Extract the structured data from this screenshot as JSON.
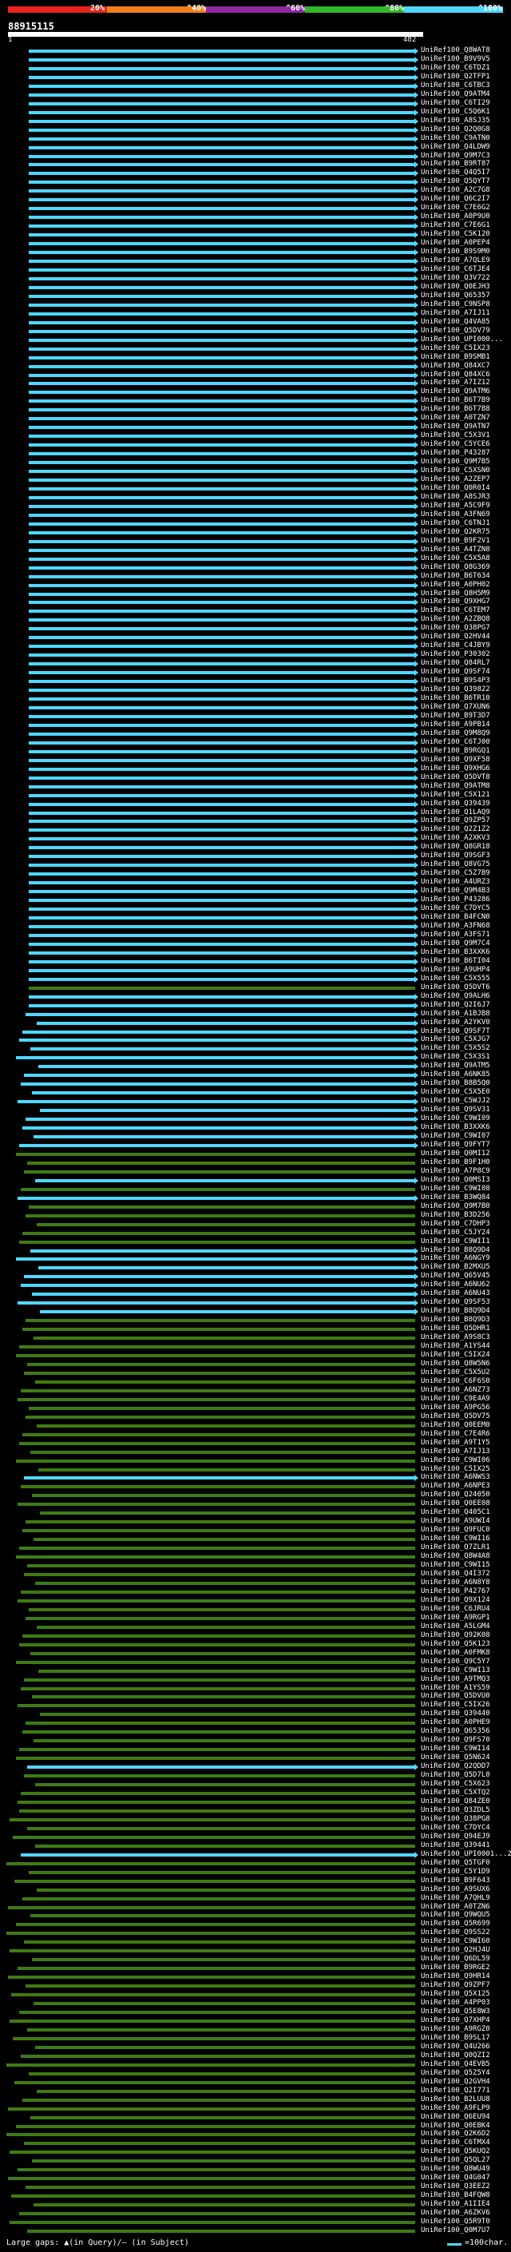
{
  "colors": {
    "red": "#e8241c",
    "orange": "#ef7f1a",
    "purple": "#8e2aa0",
    "green": "#34b52a",
    "cyan": "#4fd7ff",
    "olive": "#3f7b14",
    "white": "#ffffff",
    "background": "#000000"
  },
  "color_scale": {
    "labels": [
      "20%",
      "^40%",
      "^60%",
      "^80%",
      "^100%"
    ]
  },
  "query": {
    "id": "88915115",
    "start": "1",
    "end": "482"
  },
  "alignments": [
    {
      "id": "UniRef100_Q8WAT8",
      "identity": "high"
    },
    {
      "id": "UniRef100_B9V9V5",
      "identity": "high"
    },
    {
      "id": "UniRef100_C6TDZ1",
      "identity": "high"
    },
    {
      "id": "UniRef100_Q2TFP1",
      "identity": "high"
    },
    {
      "id": "UniRef100_C6TBC3",
      "identity": "high"
    },
    {
      "id": "UniRef100_Q9ATM4",
      "identity": "high"
    },
    {
      "id": "UniRef100_C6TI29",
      "identity": "high"
    },
    {
      "id": "UniRef100_C5Q6K1",
      "identity": "high"
    },
    {
      "id": "UniRef100_A8SJ35",
      "identity": "high"
    },
    {
      "id": "UniRef100_Q2Q0G8",
      "identity": "high"
    },
    {
      "id": "UniRef100_C9ATN0",
      "identity": "high"
    },
    {
      "id": "UniRef100_Q4LDW9",
      "identity": "high"
    },
    {
      "id": "UniRef100_Q9M7C3",
      "identity": "high"
    },
    {
      "id": "UniRef100_B9RT87",
      "identity": "high"
    },
    {
      "id": "UniRef100_Q4Q5I7",
      "identity": "high"
    },
    {
      "id": "UniRef100_Q5QYT7",
      "identity": "high"
    },
    {
      "id": "UniRef100_A2C7G8",
      "identity": "high"
    },
    {
      "id": "UniRef100_Q6C2I7",
      "identity": "high"
    },
    {
      "id": "UniRef100_C7E6G2",
      "identity": "high"
    },
    {
      "id": "UniRef100_A0P9U0",
      "identity": "high"
    },
    {
      "id": "UniRef100_C7E6G1",
      "identity": "high"
    },
    {
      "id": "UniRef100_C5K120",
      "identity": "high"
    },
    {
      "id": "UniRef100_A0PEP4",
      "identity": "high"
    },
    {
      "id": "UniRef100_B9S9M0",
      "identity": "high"
    },
    {
      "id": "UniRef100_A7QLE9",
      "identity": "high"
    },
    {
      "id": "UniRef100_C6TJE4",
      "identity": "high"
    },
    {
      "id": "UniRef100_Q3V722",
      "identity": "high"
    },
    {
      "id": "UniRef100_Q0EJH3",
      "identity": "high"
    },
    {
      "id": "UniRef100_Q65357",
      "identity": "high"
    },
    {
      "id": "UniRef100_C9NSP8",
      "identity": "high"
    },
    {
      "id": "UniRef100_A7IJ11",
      "identity": "high"
    },
    {
      "id": "UniRef100_Q4VA85",
      "identity": "high"
    },
    {
      "id": "UniRef100_Q5DV79",
      "identity": "high"
    },
    {
      "id": "UniRef100_UPI000...",
      "identity": "high"
    },
    {
      "id": "UniRef100_C5IX23",
      "identity": "high"
    },
    {
      "id": "UniRef100_B9SMB1",
      "identity": "high"
    },
    {
      "id": "UniRef100_Q84XC7",
      "identity": "high"
    },
    {
      "id": "UniRef100_Q84XC6",
      "identity": "high"
    },
    {
      "id": "UniRef100_A7IZ12",
      "identity": "high"
    },
    {
      "id": "UniRef100_Q9ATM6",
      "identity": "high"
    },
    {
      "id": "UniRef100_B6T7B9",
      "identity": "high"
    },
    {
      "id": "UniRef100_B6T7B8",
      "identity": "high"
    },
    {
      "id": "UniRef100_A0TZN7",
      "identity": "high"
    },
    {
      "id": "UniRef100_Q9ATN7",
      "identity": "high"
    },
    {
      "id": "UniRef100_C5X3V1",
      "identity": "high"
    },
    {
      "id": "UniRef100_C5YCE6",
      "identity": "high"
    },
    {
      "id": "UniRef100_P43287",
      "identity": "high"
    },
    {
      "id": "UniRef100_Q9M7B5",
      "identity": "high"
    },
    {
      "id": "UniRef100_C5XSN0",
      "identity": "high"
    },
    {
      "id": "UniRef100_A2ZEP7",
      "identity": "high"
    },
    {
      "id": "UniRef100_Q0R0I4",
      "identity": "high"
    },
    {
      "id": "UniRef100_A8SJR3",
      "identity": "high"
    },
    {
      "id": "UniRef100_A5C9F9",
      "identity": "high"
    },
    {
      "id": "UniRef100_A3FN69",
      "identity": "high"
    },
    {
      "id": "UniRef100_C6TNJ1",
      "identity": "high"
    },
    {
      "id": "UniRef100_Q2KR75",
      "identity": "high"
    },
    {
      "id": "UniRef100_B9F2V1",
      "identity": "high"
    },
    {
      "id": "UniRef100_A4TZN8",
      "identity": "high"
    },
    {
      "id": "UniRef100_C5X5A8",
      "identity": "high"
    },
    {
      "id": "UniRef100_Q8G369",
      "identity": "high"
    },
    {
      "id": "UniRef100_B6T634",
      "identity": "high"
    },
    {
      "id": "UniRef100_A0PH02",
      "identity": "high"
    },
    {
      "id": "UniRef100_Q8H5M9",
      "identity": "high"
    },
    {
      "id": "UniRef100_Q9XHG7",
      "identity": "high"
    },
    {
      "id": "UniRef100_C6TEM7",
      "identity": "high"
    },
    {
      "id": "UniRef100_A2ZBQ8",
      "identity": "high"
    },
    {
      "id": "UniRef100_Q38PG7",
      "identity": "high"
    },
    {
      "id": "UniRef100_Q2HV44",
      "identity": "high"
    },
    {
      "id": "UniRef100_C4JBY9",
      "identity": "high"
    },
    {
      "id": "UniRef100_P30302",
      "identity": "high"
    },
    {
      "id": "UniRef100_Q84RL7",
      "identity": "high"
    },
    {
      "id": "UniRef100_Q9SF74",
      "identity": "high"
    },
    {
      "id": "UniRef100_B9S4P3",
      "identity": "high"
    },
    {
      "id": "UniRef100_Q39822",
      "identity": "high"
    },
    {
      "id": "UniRef100_B6TR10",
      "identity": "high"
    },
    {
      "id": "UniRef100_Q7XUN6",
      "identity": "high"
    },
    {
      "id": "UniRef100_B9T3D7",
      "identity": "high"
    },
    {
      "id": "UniRef100_A9PB14",
      "identity": "high"
    },
    {
      "id": "UniRef100_Q9M8Q9",
      "identity": "high"
    },
    {
      "id": "UniRef100_C6TJ00",
      "identity": "high"
    },
    {
      "id": "UniRef100_B9RGQ1",
      "identity": "high"
    },
    {
      "id": "UniRef100_Q9XF58",
      "identity": "high"
    },
    {
      "id": "UniRef100_Q9XHG6",
      "identity": "high"
    },
    {
      "id": "UniRef100_Q5DVT8",
      "identity": "high"
    },
    {
      "id": "UniRef100_Q9ATM8",
      "identity": "high"
    },
    {
      "id": "UniRef100_C5X121",
      "identity": "high"
    },
    {
      "id": "UniRef100_Q39439",
      "identity": "high"
    },
    {
      "id": "UniRef100_Q1LAQ9",
      "identity": "high"
    },
    {
      "id": "UniRef100_Q9ZP57",
      "identity": "high"
    },
    {
      "id": "UniRef100_Q2Z1Z2",
      "identity": "high"
    },
    {
      "id": "UniRef100_A2XKV3",
      "identity": "high"
    },
    {
      "id": "UniRef100_Q8GR18",
      "identity": "high"
    },
    {
      "id": "UniRef100_Q9SGF3",
      "identity": "high"
    },
    {
      "id": "UniRef100_Q8VG75",
      "identity": "high"
    },
    {
      "id": "UniRef100_C5Z7B9",
      "identity": "high"
    },
    {
      "id": "UniRef100_A4URZ3",
      "identity": "high"
    },
    {
      "id": "UniRef100_Q9M4B3",
      "identity": "high"
    },
    {
      "id": "UniRef100_P43286",
      "identity": "high"
    },
    {
      "id": "UniRef100_C7DYC5",
      "identity": "high"
    },
    {
      "id": "UniRef100_B4FCN0",
      "identity": "high"
    },
    {
      "id": "UniRef100_A3FN68",
      "identity": "high"
    },
    {
      "id": "UniRef100_A3FS71",
      "identity": "high"
    },
    {
      "id": "UniRef100_Q9M7C4",
      "identity": "high"
    },
    {
      "id": "UniRef100_B3XXK6",
      "identity": "high"
    },
    {
      "id": "UniRef100_B6TI04",
      "identity": "high"
    },
    {
      "id": "UniRef100_A9UHP4",
      "identity": "high"
    },
    {
      "id": "UniRef100_C5X555",
      "identity": "high"
    },
    {
      "id": "UniRef100_Q5DVT6",
      "identity": "mid"
    },
    {
      "id": "UniRef100_Q9ALH6",
      "identity": "high"
    },
    {
      "id": "UniRef100_Q2I6J7",
      "identity": "high"
    },
    {
      "id": "UniRef100_A1BJB8",
      "identity": "high"
    },
    {
      "id": "UniRef100_A2YKV0",
      "identity": "high"
    },
    {
      "id": "UniRef100_Q9SF7T",
      "identity": "high"
    },
    {
      "id": "UniRef100_C5XJG7",
      "identity": "high"
    },
    {
      "id": "UniRef100_C5X5S2",
      "identity": "high"
    },
    {
      "id": "UniRef100_C5X3S1",
      "identity": "high"
    },
    {
      "id": "UniRef100_Q9ATM5",
      "identity": "high"
    },
    {
      "id": "UniRef100_A6NK85",
      "identity": "high"
    },
    {
      "id": "UniRef100_B8B5Q0",
      "identity": "high"
    },
    {
      "id": "UniRef100_C5X5E0",
      "identity": "high"
    },
    {
      "id": "UniRef100_C5WJJ2",
      "identity": "high"
    },
    {
      "id": "UniRef100_Q9SV31",
      "identity": "high"
    },
    {
      "id": "UniRef100_C9WI09",
      "identity": "high"
    },
    {
      "id": "UniRef100_B3XXK6",
      "identity": "high"
    },
    {
      "id": "UniRef100_C9WI07",
      "identity": "high"
    },
    {
      "id": "UniRef100_Q9FYT7",
      "identity": "high"
    },
    {
      "id": "UniRef100_Q0MI12",
      "identity": "mid"
    },
    {
      "id": "UniRef100_B9F1H0",
      "identity": "mid"
    },
    {
      "id": "UniRef100_A7P8C9",
      "identity": "mid"
    },
    {
      "id": "UniRef100_Q0MSI3",
      "identity": "high"
    },
    {
      "id": "UniRef100_C9WI08",
      "identity": "mid"
    },
    {
      "id": "UniRef100_B3WQ84",
      "identity": "high"
    },
    {
      "id": "UniRef100_Q9M7B0",
      "identity": "mid"
    },
    {
      "id": "UniRef100_B3D256",
      "identity": "mid"
    },
    {
      "id": "UniRef100_C7DHP3",
      "identity": "mid"
    },
    {
      "id": "UniRef100_C5JY24",
      "identity": "mid"
    },
    {
      "id": "UniRef100_C9WII1",
      "identity": "mid"
    },
    {
      "id": "UniRef100_B8Q9D4",
      "identity": "high"
    },
    {
      "id": "UniRef100_A6NGY9",
      "identity": "high"
    },
    {
      "id": "UniRef100_B2MXU5",
      "identity": "high"
    },
    {
      "id": "UniRef100_Q65V45",
      "identity": "high"
    },
    {
      "id": "UniRef100_A6NU62",
      "identity": "high"
    },
    {
      "id": "UniRef100_A6NU43",
      "identity": "high"
    },
    {
      "id": "UniRef100_Q9SF53",
      "identity": "high"
    },
    {
      "id": "UniRef100_B8Q9D4",
      "identity": "high"
    },
    {
      "id": "UniRef100_B8Q9D3",
      "identity": "mid"
    },
    {
      "id": "UniRef100_Q5DHR1",
      "identity": "mid"
    },
    {
      "id": "UniRef100_A9S8C3",
      "identity": "mid"
    },
    {
      "id": "UniRef100_A1YS44",
      "identity": "mid"
    },
    {
      "id": "UniRef100_C5IX24",
      "identity": "mid"
    },
    {
      "id": "UniRef100_Q8W5N6",
      "identity": "mid"
    },
    {
      "id": "UniRef100_C5X5U2",
      "identity": "mid"
    },
    {
      "id": "UniRef100_C6F6S0",
      "identity": "mid"
    },
    {
      "id": "UniRef100_A6NZ73",
      "identity": "mid"
    },
    {
      "id": "UniRef100_C9E4A9",
      "identity": "mid"
    },
    {
      "id": "UniRef100_A9PG56",
      "identity": "mid"
    },
    {
      "id": "UniRef100_Q5DV75",
      "identity": "mid"
    },
    {
      "id": "UniRef100_Q0EEM0",
      "identity": "mid"
    },
    {
      "id": "UniRef100_C7E4R6",
      "identity": "mid"
    },
    {
      "id": "UniRef100_A9T1Y5",
      "identity": "mid"
    },
    {
      "id": "UniRef100_A7IJ13",
      "identity": "mid"
    },
    {
      "id": "UniRef100_C9WI06",
      "identity": "mid"
    },
    {
      "id": "UniRef100_C5IX25",
      "identity": "mid"
    },
    {
      "id": "UniRef100_A6NWS3",
      "identity": "high"
    },
    {
      "id": "UniRef100_A6NPE3",
      "identity": "mid"
    },
    {
      "id": "UniRef100_Q24050",
      "identity": "mid"
    },
    {
      "id": "UniRef100_Q0EE08",
      "identity": "mid"
    },
    {
      "id": "UniRef100_Q405C1",
      "identity": "mid"
    },
    {
      "id": "UniRef100_A9UWI4",
      "identity": "mid"
    },
    {
      "id": "UniRef100_Q9FUC0",
      "identity": "mid"
    },
    {
      "id": "UniRef100_C9WI16",
      "identity": "mid"
    },
    {
      "id": "UniRef100_Q7ZLR1",
      "identity": "mid"
    },
    {
      "id": "UniRef100_Q8W4A8",
      "identity": "mid"
    },
    {
      "id": "UniRef100_C9WI15",
      "identity": "mid"
    },
    {
      "id": "UniRef100_Q4I372",
      "identity": "mid"
    },
    {
      "id": "UniRef100_A6N8Y8",
      "identity": "mid"
    },
    {
      "id": "UniRef100_P42767",
      "identity": "mid"
    },
    {
      "id": "UniRef100_Q9X124",
      "identity": "mid"
    },
    {
      "id": "UniRef100_C6JRU4",
      "identity": "mid"
    },
    {
      "id": "UniRef100_A9RGP1",
      "identity": "mid"
    },
    {
      "id": "UniRef100_A5LGM4",
      "identity": "mid"
    },
    {
      "id": "UniRef100_Q92K08",
      "identity": "mid"
    },
    {
      "id": "UniRef100_Q5K123",
      "identity": "mid"
    },
    {
      "id": "UniRef100_A0FMK8",
      "identity": "mid"
    },
    {
      "id": "UniRef100_Q9C5Y7",
      "identity": "mid"
    },
    {
      "id": "UniRef100_C9WI13",
      "identity": "mid"
    },
    {
      "id": "UniRef100_A9TMQ3",
      "identity": "mid"
    },
    {
      "id": "UniRef100_A1YS59",
      "identity": "mid"
    },
    {
      "id": "UniRef100_Q5DVU0",
      "identity": "mid"
    },
    {
      "id": "UniRef100_C5IX26",
      "identity": "mid"
    },
    {
      "id": "UniRef100_Q39440",
      "identity": "mid"
    },
    {
      "id": "UniRef100_A0PHE9",
      "identity": "mid"
    },
    {
      "id": "UniRef100_Q65356",
      "identity": "mid"
    },
    {
      "id": "UniRef100_Q9FS70",
      "identity": "mid"
    },
    {
      "id": "UniRef100_C9WI14",
      "identity": "mid"
    },
    {
      "id": "UniRef100_Q5N624",
      "identity": "mid"
    },
    {
      "id": "UniRef100_Q2QDD7",
      "identity": "high"
    },
    {
      "id": "UniRef100_Q5D7L0",
      "identity": "mid"
    },
    {
      "id": "UniRef100_C5X623",
      "identity": "mid"
    },
    {
      "id": "UniRef100_C5XTQ2",
      "identity": "mid"
    },
    {
      "id": "UniRef100_Q84ZE0",
      "identity": "mid"
    },
    {
      "id": "UniRef100_Q3ZDL5",
      "identity": "mid"
    },
    {
      "id": "UniRef100_Q38PG8",
      "identity": "mid"
    },
    {
      "id": "UniRef100_C7DYC4",
      "identity": "mid"
    },
    {
      "id": "UniRef100_Q94EJ9",
      "identity": "mid"
    },
    {
      "id": "UniRef100_Q39441",
      "identity": "mid"
    },
    {
      "id": "UniRef100_UPI0001...2",
      "identity": "high"
    },
    {
      "id": "UniRef100_Q5TGF0",
      "identity": "mid"
    },
    {
      "id": "UniRef100_C5Y1D9",
      "identity": "mid"
    },
    {
      "id": "UniRef100_B9F643",
      "identity": "mid"
    },
    {
      "id": "UniRef100_A9SUX6",
      "identity": "mid"
    },
    {
      "id": "UniRef100_A7QHL9",
      "identity": "mid"
    },
    {
      "id": "UniRef100_A0TZN6",
      "identity": "mid"
    },
    {
      "id": "UniRef100_Q9WQU5",
      "identity": "mid"
    },
    {
      "id": "UniRef100_Q5R699",
      "identity": "mid"
    },
    {
      "id": "UniRef100_Q9SS22",
      "identity": "mid"
    },
    {
      "id": "UniRef100_C9WI60",
      "identity": "mid"
    },
    {
      "id": "UniRef100_Q2HJ4U",
      "identity": "mid"
    },
    {
      "id": "UniRef100_Q6DL59",
      "identity": "mid"
    },
    {
      "id": "UniRef100_B9RGE2",
      "identity": "mid"
    },
    {
      "id": "UniRef100_Q9HR14",
      "identity": "mid"
    },
    {
      "id": "UniRef100_Q9ZPF7",
      "identity": "mid"
    },
    {
      "id": "UniRef100_Q5X125",
      "identity": "mid"
    },
    {
      "id": "UniRef100_A4PP03",
      "identity": "mid"
    },
    {
      "id": "UniRef100_Q5E8W3",
      "identity": "mid"
    },
    {
      "id": "UniRef100_Q7XHP4",
      "identity": "mid"
    },
    {
      "id": "UniRef100_A9RGZ0",
      "identity": "mid"
    },
    {
      "id": "UniRef100_B9SL17",
      "identity": "mid"
    },
    {
      "id": "UniRef100_Q4U266",
      "identity": "mid"
    },
    {
      "id": "UniRef100_Q0QZI2",
      "identity": "mid"
    },
    {
      "id": "UniRef100_Q4EVB5",
      "identity": "mid"
    },
    {
      "id": "UniRef100_Q5Z5Y4",
      "identity": "mid"
    },
    {
      "id": "UniRef100_Q2GVH4",
      "identity": "mid"
    },
    {
      "id": "UniRef100_Q2I771",
      "identity": "mid"
    },
    {
      "id": "UniRef100_B2LUU8",
      "identity": "mid"
    },
    {
      "id": "UniRef100_A9FLP9",
      "identity": "mid"
    },
    {
      "id": "UniRef100_Q6EU94",
      "identity": "mid"
    },
    {
      "id": "UniRef100_Q0EBK4",
      "identity": "mid"
    },
    {
      "id": "UniRef100_Q2K6D2",
      "identity": "mid"
    },
    {
      "id": "UniRef100_C6TMX4",
      "identity": "mid"
    },
    {
      "id": "UniRef100_Q5KUQ2",
      "identity": "mid"
    },
    {
      "id": "UniRef100_Q5QL27",
      "identity": "mid"
    },
    {
      "id": "UniRef100_Q8WU49",
      "identity": "mid"
    },
    {
      "id": "UniRef100_Q4G047",
      "identity": "mid"
    },
    {
      "id": "UniRef100_Q3EEZ2",
      "identity": "mid"
    },
    {
      "id": "UniRef100_B4FQW8",
      "identity": "mid"
    },
    {
      "id": "UniRef100_A1IIE4",
      "identity": "mid"
    },
    {
      "id": "UniRef100_A6ZKV6",
      "identity": "mid"
    },
    {
      "id": "UniRef100_Q5R9T0",
      "identity": "mid"
    },
    {
      "id": "UniRef100_Q0M7U7",
      "identity": "mid"
    }
  ],
  "footer": {
    "text": "Large gaps: ▲(in Query)/– (in Subject)",
    "legend": "=100char."
  }
}
